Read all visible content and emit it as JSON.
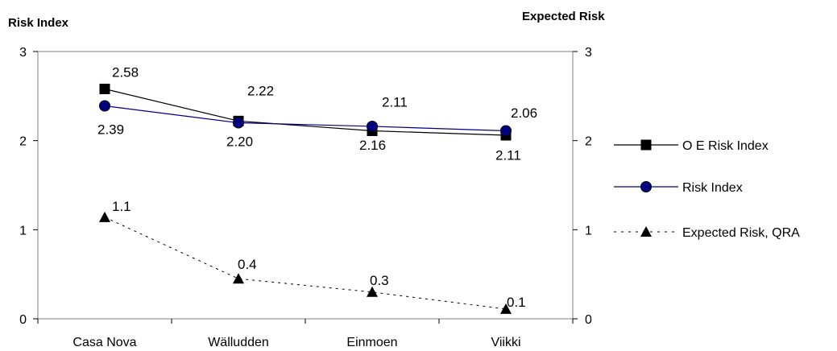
{
  "chart_data": {
    "type": "line",
    "left_axis_title": "Risk Index",
    "right_axis_title": "Expected Risk",
    "categories": [
      "Casa Nova",
      "Wälludden",
      "Einmoen",
      "Viikki"
    ],
    "ylim": [
      0,
      3
    ],
    "y_ticks": [
      "0",
      "1",
      "2",
      "3"
    ],
    "y2lim": [
      0,
      3
    ],
    "y2_ticks": [
      "0",
      "1",
      "2",
      "3"
    ],
    "grid": false,
    "legend_position": "right",
    "series": [
      {
        "name": "O E Risk Index",
        "marker": "square",
        "color": "#000000",
        "line_style": "solid",
        "axis": "left",
        "values": [
          2.58,
          2.22,
          2.11,
          2.06
        ],
        "labels": [
          "2.58",
          "2.22",
          "2.11",
          "2.06"
        ]
      },
      {
        "name": "Risk Index",
        "marker": "circle",
        "color": "#000080",
        "line_style": "solid",
        "axis": "left",
        "values": [
          2.39,
          2.2,
          2.16,
          2.11
        ],
        "labels": [
          "2.39",
          "2.20",
          "2.16",
          "2.11"
        ]
      },
      {
        "name": "Expected Risk, QRA",
        "marker": "triangle",
        "color": "#000000",
        "line_style": "dashed",
        "axis": "right",
        "values": [
          1.14,
          0.45,
          0.3,
          0.11
        ],
        "labels": [
          "1.1",
          "0.4",
          "0.3",
          "0.1"
        ]
      }
    ]
  }
}
